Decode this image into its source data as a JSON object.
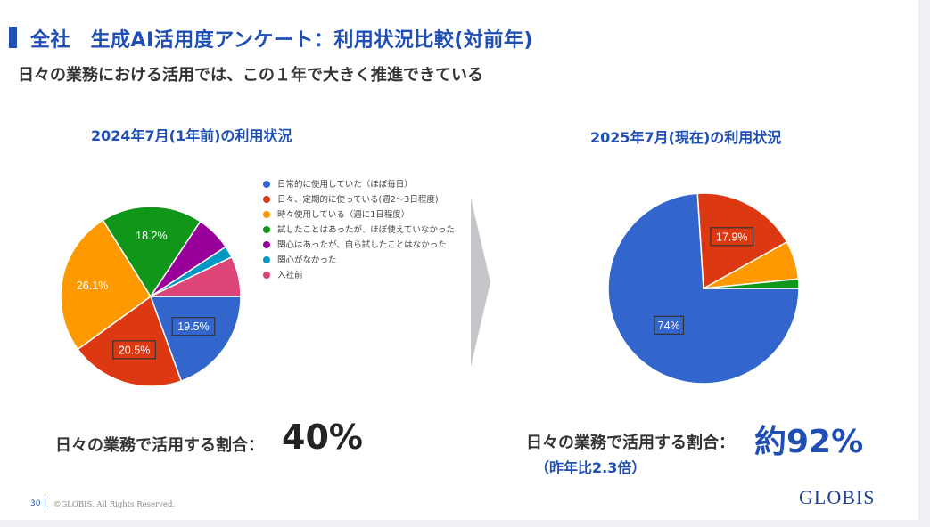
{
  "title": "全社　生成AI活用度アンケート：利用状況比較(対前年)",
  "subtitle": "日々の業務における活用では、この１年で大きく推進できている",
  "chart_data": [
    {
      "type": "pie",
      "title": "2024年7月(1年前)の利用状況",
      "labels": [
        "日常的に使用していた（ほぼ毎日）",
        "日々、定期的に使っている(週2～3日程度)",
        "時々使用している（週に1日程度）",
        "試したことはあったが、ほぼ使えていなかった",
        "関心はあったが、自ら試したことはなかった",
        "関心がなかった",
        "入社前"
      ],
      "values": [
        19.5,
        20.5,
        26.1,
        18.2,
        6.4,
        2.1,
        7.2
      ],
      "colors": [
        "#3366cc",
        "#dc3912",
        "#ff9900",
        "#109618",
        "#990099",
        "#0099c6",
        "#dd4477"
      ],
      "data_labels": [
        "19.5%",
        "20.5%",
        "26.1%",
        "18.2%",
        "",
        "",
        ""
      ]
    },
    {
      "type": "pie",
      "title": "2025年7月(現在)の利用状況",
      "labels": [
        "日常的に使用していた（ほぼ毎日）",
        "日々、定期的に使っている(週2～3日程度)",
        "時々使用している（週に1日程度）",
        "試したことはあったが、ほぼ使えていなかった"
      ],
      "values": [
        74,
        17.9,
        6.5,
        1.6
      ],
      "colors": [
        "#3366cc",
        "#dc3912",
        "#ff9900",
        "#109618"
      ],
      "data_labels": [
        "74%",
        "17.9%",
        "",
        ""
      ]
    }
  ],
  "legend": [
    {
      "label": "日常的に使用していた（ほぼ毎日）",
      "color": "#3366cc"
    },
    {
      "label": "日々、定期的に使っている(週2～3日程度)",
      "color": "#dc3912"
    },
    {
      "label": "時々使用している（週に1日程度）",
      "color": "#ff9900"
    },
    {
      "label": "試したことはあったが、ほぼ使えていなかった",
      "color": "#109618"
    },
    {
      "label": "関心はあったが、自ら試したことはなかった",
      "color": "#990099"
    },
    {
      "label": "関心がなかった",
      "color": "#0099c6"
    },
    {
      "label": "入社前",
      "color": "#dd4477"
    }
  ],
  "stats": {
    "left_label": "日々の業務で活用する割合：",
    "left_value": "40%",
    "right_label": "日々の業務で活用する割合：",
    "right_value": "約92%",
    "yoy": "（昨年比2.3倍）"
  },
  "footer": {
    "page": "30",
    "copyright": "©GLOBIS. All Rights Reserved.",
    "logo": "GLOBIS"
  }
}
